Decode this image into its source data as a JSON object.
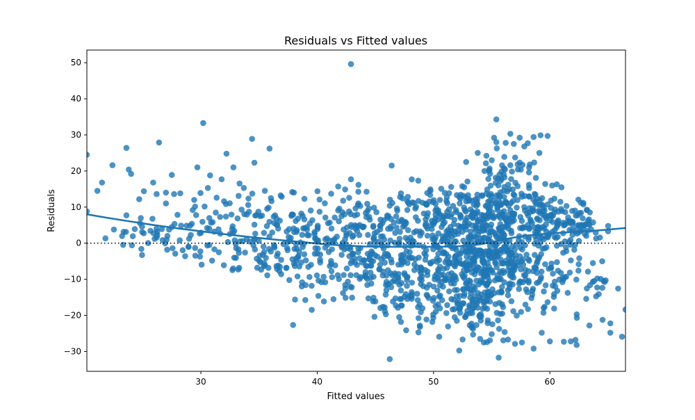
{
  "chart_data": {
    "type": "scatter",
    "title": "Residuals vs Fitted values",
    "xlabel": "Fitted values",
    "ylabel": "Residuals",
    "xlim": [
      20.2,
      66.5
    ],
    "ylim": [
      -35.5,
      53.5
    ],
    "xticks": [
      30,
      40,
      50,
      60
    ],
    "yticks": [
      -30,
      -20,
      -10,
      0,
      10,
      20,
      30,
      40,
      50
    ],
    "grid": false,
    "reference_line": {
      "y": 0,
      "style": "dotted"
    },
    "colors": {
      "points": "#1f77b4",
      "lowess": "#1f77b4",
      "reference": "#000000"
    },
    "outlier_points": [
      [
        20.2,
        24.5
      ],
      [
        20.2,
        8.8
      ],
      [
        21.1,
        14.5
      ],
      [
        21.5,
        16.8
      ],
      [
        22.4,
        21.6
      ],
      [
        23.6,
        26.4
      ],
      [
        23.8,
        20.4
      ],
      [
        24.0,
        19.2
      ],
      [
        23.6,
        7.7
      ],
      [
        24.7,
        12.2
      ],
      [
        25.1,
        14.4
      ],
      [
        25.9,
        16.8
      ],
      [
        26.2,
        13.6
      ],
      [
        26.4,
        27.9
      ],
      [
        27.0,
        14.0
      ],
      [
        27.0,
        11.0
      ],
      [
        27.5,
        18.9
      ],
      [
        27.7,
        13.6
      ],
      [
        27.8,
        -2.9
      ],
      [
        29.7,
        21.0
      ],
      [
        30.2,
        33.3
      ],
      [
        30.6,
        15.3
      ],
      [
        32.2,
        24.8
      ],
      [
        32.8,
        21.0
      ],
      [
        34.4,
        28.9
      ],
      [
        34.6,
        22.3
      ],
      [
        35.5,
        14.5
      ],
      [
        35.9,
        26.2
      ],
      [
        42.9,
        49.6
      ],
      [
        41.8,
        15.7
      ],
      [
        42.9,
        17.7
      ],
      [
        43.7,
        10.3
      ],
      [
        46.4,
        21.5
      ],
      [
        47.2,
        13.8
      ],
      [
        55.4,
        34.3
      ],
      [
        55.2,
        29.2
      ],
      [
        55.4,
        28.0
      ],
      [
        56.6,
        30.3
      ],
      [
        57.4,
        29.2
      ],
      [
        58.1,
        27.7
      ],
      [
        58.6,
        29.4
      ],
      [
        59.2,
        29.9
      ],
      [
        59.8,
        29.7
      ],
      [
        59.1,
        25.0
      ],
      [
        53.8,
        25.0
      ],
      [
        52.8,
        22.5
      ],
      [
        56.2,
        27.8
      ],
      [
        56.9,
        27.5
      ],
      [
        57.8,
        26.8
      ],
      [
        55.6,
        -31.7
      ],
      [
        56.0,
        -26.9
      ],
      [
        56.4,
        -26.7
      ],
      [
        57.0,
        -27.9
      ],
      [
        57.6,
        -27.5
      ],
      [
        58.6,
        -29.2
      ],
      [
        59.3,
        -24.8
      ],
      [
        60.0,
        -27.2
      ],
      [
        61.2,
        -27.3
      ],
      [
        61.8,
        -27.2
      ],
      [
        62.2,
        -26.8
      ],
      [
        62.3,
        -28.2
      ],
      [
        63.4,
        -22.8
      ],
      [
        64.2,
        -14.1
      ],
      [
        64.8,
        -10.3
      ],
      [
        65.2,
        -22.2
      ],
      [
        65.2,
        -24.8
      ],
      [
        66.2,
        -25.9
      ],
      [
        66.5,
        -18.4
      ],
      [
        64.5,
        -5.0
      ],
      [
        63.7,
        -5.5
      ],
      [
        65.0,
        3.3
      ],
      [
        48.7,
        -24.7
      ],
      [
        49.9,
        -21.8
      ],
      [
        52.0,
        -21.5
      ],
      [
        53.4,
        -23.7
      ],
      [
        54.0,
        -26.5
      ],
      [
        54.6,
        -27.4
      ],
      [
        53.4,
        -25.3
      ],
      [
        55.0,
        -25.2
      ],
      [
        38.0,
        14.0
      ],
      [
        38.9,
        12.3
      ],
      [
        40.2,
        12.1
      ],
      [
        41.2,
        13.7
      ],
      [
        42.4,
        14.9
      ],
      [
        44.3,
        10.9
      ],
      [
        45.8,
        -17.8
      ],
      [
        44.8,
        -16.1
      ],
      [
        45.9,
        -19.7
      ],
      [
        47.2,
        -21.8
      ],
      [
        44.4,
        -15.3
      ],
      [
        43.0,
        -15.1
      ],
      [
        41.4,
        -15.5
      ],
      [
        40.1,
        -14.6
      ],
      [
        39.0,
        -11.6
      ],
      [
        37.6,
        -10.2
      ],
      [
        58.8,
        18.1
      ],
      [
        59.6,
        16.4
      ],
      [
        60.2,
        16.0
      ],
      [
        61.0,
        15.5
      ],
      [
        60.6,
        16.3
      ],
      [
        58.2,
        19.6
      ],
      [
        57.5,
        20.4
      ],
      [
        56.6,
        21.6
      ]
    ],
    "clusters": [
      {
        "cx": 25.5,
        "cy": 2.5,
        "sx": 1.8,
        "sy": 2.2,
        "n": 30
      },
      {
        "cx": 31.0,
        "cy": 1.5,
        "sx": 2.5,
        "sy": 4.2,
        "n": 55
      },
      {
        "cx": 33.5,
        "cy": 9.0,
        "sx": 2.3,
        "sy": 4.5,
        "n": 40
      },
      {
        "cx": 35.5,
        "cy": -3.0,
        "sx": 2.5,
        "sy": 3.5,
        "n": 45
      },
      {
        "cx": 38.0,
        "cy": 4.0,
        "sx": 2.5,
        "sy": 4.5,
        "n": 55
      },
      {
        "cx": 40.5,
        "cy": -4.0,
        "sx": 2.5,
        "sy": 5.5,
        "n": 75
      },
      {
        "cx": 43.0,
        "cy": 4.5,
        "sx": 2.0,
        "sy": 5.0,
        "n": 60
      },
      {
        "cx": 44.5,
        "cy": -7.0,
        "sx": 2.2,
        "sy": 5.5,
        "n": 70
      },
      {
        "cx": 47.5,
        "cy": 3.0,
        "sx": 2.0,
        "sy": 6.0,
        "n": 85
      },
      {
        "cx": 47.5,
        "cy": -12.0,
        "sx": 2.2,
        "sy": 5.0,
        "n": 70
      },
      {
        "cx": 50.5,
        "cy": 6.5,
        "sx": 2.0,
        "sy": 5.5,
        "n": 80
      },
      {
        "cx": 51.0,
        "cy": -5.0,
        "sx": 2.0,
        "sy": 5.5,
        "n": 130
      },
      {
        "cx": 51.5,
        "cy": -17.0,
        "sx": 2.2,
        "sy": 4.0,
        "n": 55
      },
      {
        "cx": 54.0,
        "cy": 8.5,
        "sx": 1.6,
        "sy": 4.5,
        "n": 100
      },
      {
        "cx": 54.0,
        "cy": -5.0,
        "sx": 1.6,
        "sy": 5.5,
        "n": 170
      },
      {
        "cx": 54.5,
        "cy": -18.0,
        "sx": 1.8,
        "sy": 4.0,
        "n": 50
      },
      {
        "cx": 56.5,
        "cy": 8.0,
        "sx": 1.5,
        "sy": 5.0,
        "n": 100
      },
      {
        "cx": 56.5,
        "cy": -6.0,
        "sx": 1.5,
        "sy": 5.5,
        "n": 110
      },
      {
        "cx": 56.0,
        "cy": 20.5,
        "sx": 1.2,
        "sy": 2.2,
        "n": 30
      },
      {
        "cx": 59.5,
        "cy": 7.0,
        "sx": 1.6,
        "sy": 3.5,
        "n": 90
      },
      {
        "cx": 59.5,
        "cy": -8.0,
        "sx": 1.6,
        "sy": 6.5,
        "n": 70
      },
      {
        "cx": 62.5,
        "cy": 5.0,
        "sx": 1.2,
        "sy": 2.5,
        "n": 45
      },
      {
        "cx": 62.5,
        "cy": -10.0,
        "sx": 1.5,
        "sy": 6.0,
        "n": 25
      }
    ],
    "lowess_line": [
      [
        20.2,
        8.0
      ],
      [
        22,
        7.0
      ],
      [
        24,
        6.0
      ],
      [
        26,
        5.0
      ],
      [
        28,
        4.1
      ],
      [
        30,
        3.3
      ],
      [
        32,
        2.5
      ],
      [
        34,
        1.8
      ],
      [
        36,
        1.1
      ],
      [
        38,
        0.5
      ],
      [
        40,
        -0.1
      ],
      [
        42,
        -0.6
      ],
      [
        44,
        -0.9
      ],
      [
        46,
        -1.0
      ],
      [
        48,
        -1.0
      ],
      [
        50,
        -1.0
      ],
      [
        52,
        -0.9
      ],
      [
        54,
        -0.3
      ],
      [
        55,
        0.3
      ],
      [
        56,
        1.0
      ],
      [
        57,
        1.6
      ],
      [
        58,
        2.1
      ],
      [
        60,
        2.7
      ],
      [
        62,
        3.1
      ],
      [
        64,
        3.5
      ],
      [
        66.5,
        4.2
      ]
    ]
  }
}
